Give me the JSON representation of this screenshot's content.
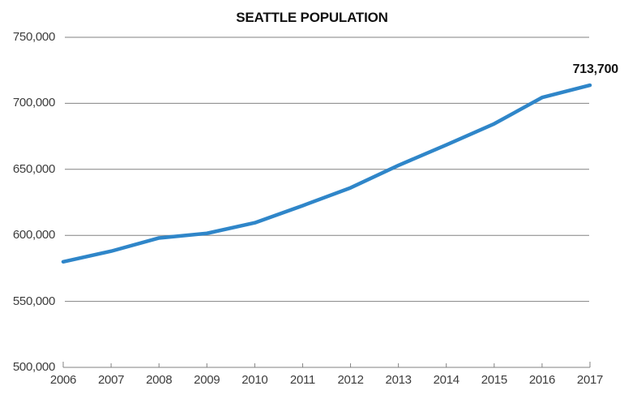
{
  "chart_data": {
    "type": "line",
    "title": "SEATTLE POPULATION",
    "x": [
      2006,
      2007,
      2008,
      2009,
      2010,
      2011,
      2012,
      2013,
      2014,
      2015,
      2016,
      2017
    ],
    "x_tick_labels": [
      "2006",
      "2007",
      "2008",
      "2009",
      "2010",
      "2011",
      "2012",
      "2013",
      "2014",
      "2015",
      "2016",
      "2017"
    ],
    "series": [
      {
        "name": "Seattle population",
        "values": [
          580000,
          588000,
          598000,
          601500,
          609500,
          622500,
          636000,
          653000,
          668500,
          684500,
          704400,
          713700
        ]
      }
    ],
    "end_label": "713,700",
    "y_ticks": [
      {
        "value": 750000,
        "label": "750,000"
      },
      {
        "value": 700000,
        "label": "700,000"
      },
      {
        "value": 650000,
        "label": "650,000"
      },
      {
        "value": 600000,
        "label": "600,000"
      },
      {
        "value": 550000,
        "label": "550,000"
      },
      {
        "value": 500000,
        "label": "500,000"
      }
    ],
    "ylim": [
      500000,
      750000
    ],
    "grid": "horizontal",
    "legend": "none",
    "colors": {
      "line": "#2f86c9",
      "grid": "#828282",
      "tick_text": "#3d3d3d",
      "title_text": "#111111"
    }
  }
}
